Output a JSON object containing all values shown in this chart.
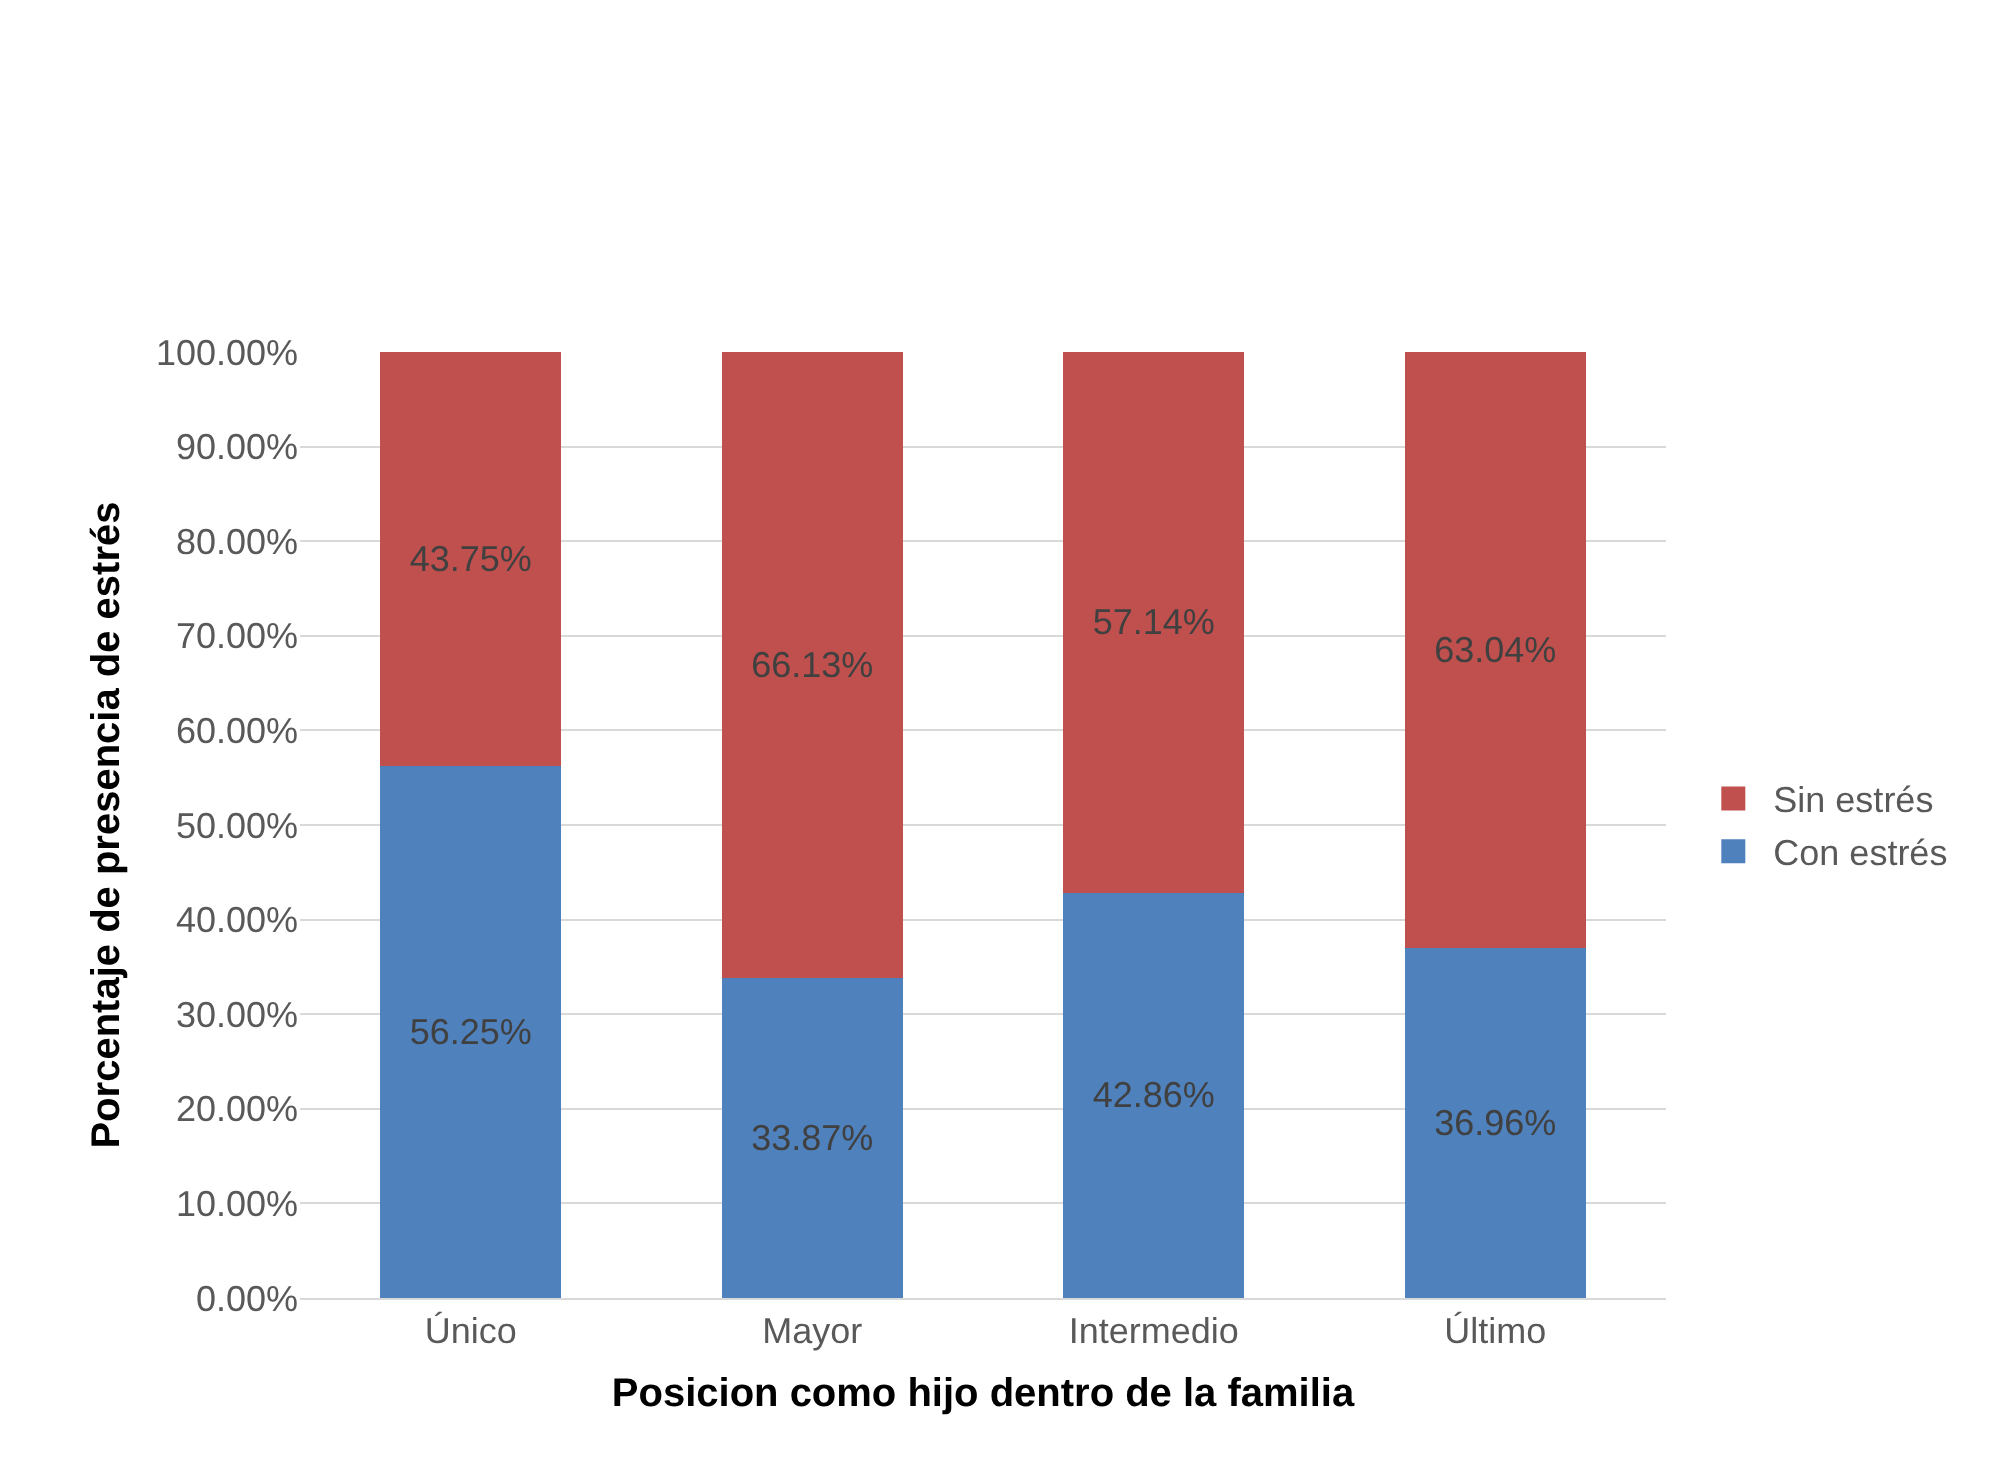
{
  "chart_data": {
    "type": "bar",
    "stacked": true,
    "xlabel": "Posicion como hijo dentro de la familia",
    "ylabel": "Porcentaje de presencia de estrés",
    "categories": [
      "Único",
      "Mayor",
      "Intermedio",
      "Último"
    ],
    "series": [
      {
        "name": "Con estrés",
        "color": "#4f81bd",
        "values": [
          56.25,
          33.87,
          42.86,
          36.96
        ],
        "value_labels": [
          "56.25%",
          "33.87%",
          "42.86%",
          "36.96%"
        ]
      },
      {
        "name": "Sin estrés",
        "color": "#c0504d",
        "values": [
          43.75,
          66.13,
          57.14,
          63.04
        ],
        "value_labels": [
          "43.75%",
          "66.13%",
          "57.14%",
          "63.04%"
        ]
      }
    ],
    "ylim": [
      0,
      100
    ],
    "yticks": [
      {
        "value": 0,
        "label": "0.00%"
      },
      {
        "value": 10,
        "label": "10.00%"
      },
      {
        "value": 20,
        "label": "20.00%"
      },
      {
        "value": 30,
        "label": "30.00%"
      },
      {
        "value": 40,
        "label": "40.00%"
      },
      {
        "value": 50,
        "label": "50.00%"
      },
      {
        "value": 60,
        "label": "60.00%"
      },
      {
        "value": 70,
        "label": "70.00%"
      },
      {
        "value": 80,
        "label": "80.00%"
      },
      {
        "value": 90,
        "label": "90.00%"
      },
      {
        "value": 100,
        "label": "100.00%"
      }
    ],
    "grid": "y",
    "legend": "right"
  }
}
